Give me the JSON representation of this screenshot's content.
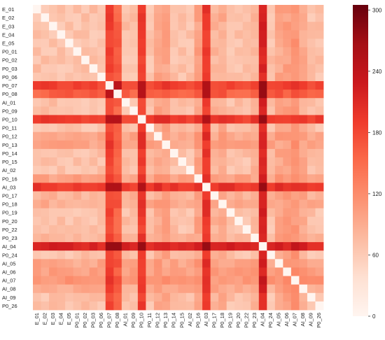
{
  "chart_data": {
    "type": "heatmap",
    "title": "",
    "xlabel": "",
    "ylabel": "",
    "labels": [
      "E_01",
      "E_02",
      "E_03",
      "E_04",
      "E_05",
      "P0_01",
      "P0_02",
      "P0_03",
      "P0_06",
      "P0_07",
      "P0_08",
      "AI_01",
      "P0_09",
      "P0_10",
      "P0_11",
      "P0_12",
      "P0_13",
      "P0_14",
      "P0_15",
      "AI_02",
      "P0_16",
      "AI_03",
      "P0_17",
      "P0_18",
      "P0_19",
      "P0_20",
      "P0_22",
      "P0_23",
      "AI_04",
      "P0_24",
      "AI_05",
      "AI_06",
      "AI_07",
      "AI_08",
      "AI_09",
      "P0_26"
    ],
    "diagonal_value": 0,
    "value_range": [
      0,
      305
    ],
    "default_value": 60,
    "row_base": [
      70,
      70,
      70,
      70,
      70,
      70,
      70,
      70,
      70,
      185,
      160,
      70,
      70,
      190,
      70,
      95,
      95,
      70,
      70,
      70,
      100,
      195,
      80,
      90,
      70,
      70,
      70,
      80,
      215,
      70,
      95,
      100,
      110,
      90,
      70,
      70
    ],
    "colorbar": {
      "ticks": [
        0,
        60,
        120,
        180,
        240,
        300
      ],
      "colors": [
        "#fff5f0",
        "#fee0d2",
        "#fcbba1",
        "#fc9272",
        "#fb6a4a",
        "#ef3b2c",
        "#cb181d",
        "#a50f15",
        "#67000d"
      ]
    }
  }
}
